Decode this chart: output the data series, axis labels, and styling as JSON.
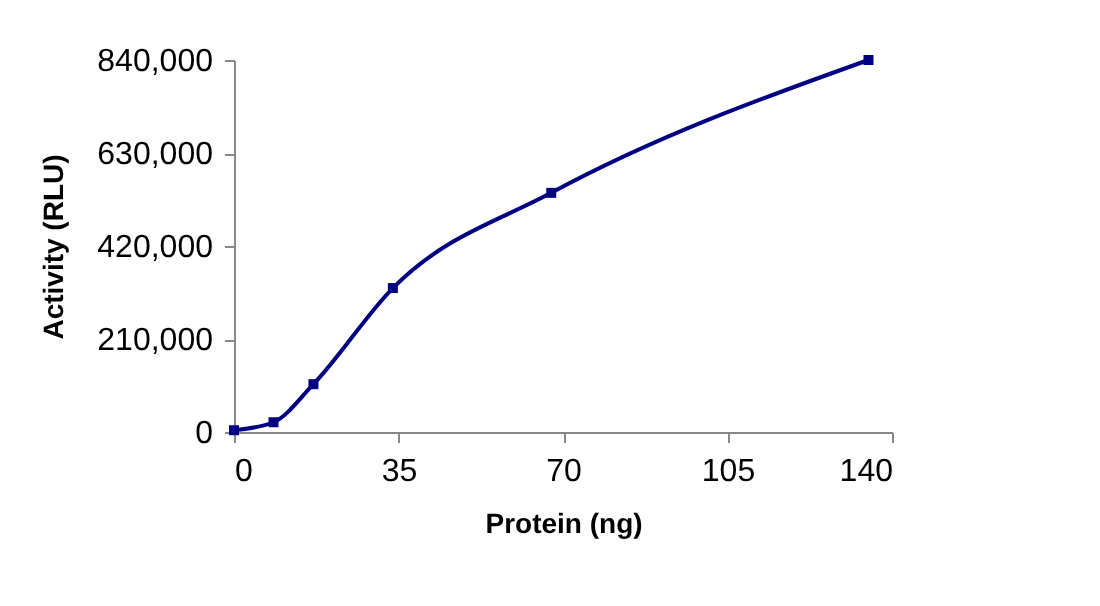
{
  "chart_data": {
    "type": "line",
    "xlabel": "Protein (ng)",
    "ylabel": "Activity (RLU)",
    "x": [
      0,
      8.4,
      16.9,
      33.8,
      67.5,
      135
    ],
    "series": [
      {
        "color": "#000080",
        "values": [
          4000,
          22000,
          108000,
          325000,
          540000,
          840000
        ]
      }
    ],
    "xlim": [
      0,
      140
    ],
    "xticks": [
      0,
      35,
      70,
      105,
      140
    ],
    "ylim": [
      0,
      840000
    ],
    "yticks": [
      0,
      {
        "value": 210000,
        "label": "210,000"
      },
      {
        "value": 420000,
        "label": "420,000"
      },
      {
        "value": 630000,
        "label": "630,000"
      },
      {
        "value": 840000,
        "label": "840,000"
      }
    ],
    "grid": false,
    "legend": false,
    "marker": "square",
    "line_style": "solid"
  }
}
